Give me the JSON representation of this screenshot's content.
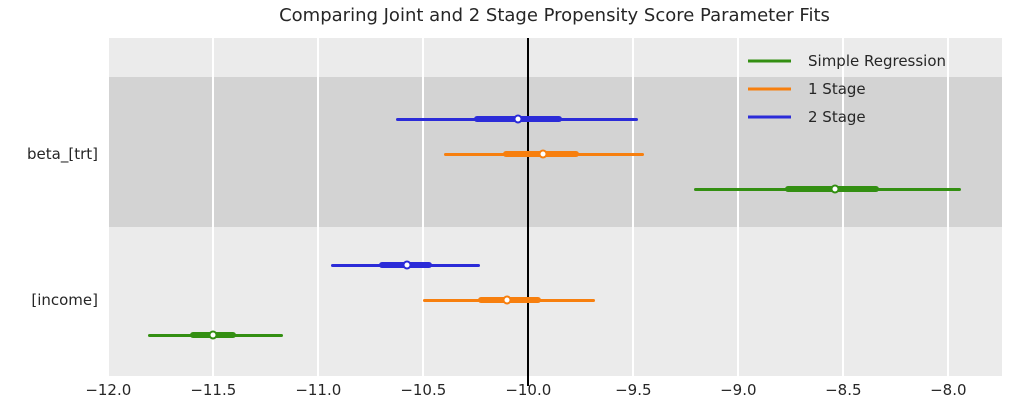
{
  "chart_data": {
    "type": "scatter",
    "subtype": "forest-plot-interval",
    "title": "Comparing Joint and 2 Stage Propensity Score Parameter Fits",
    "categories": [
      "beta_[trt]",
      "[income]"
    ],
    "xticks": [
      -12.0,
      -11.5,
      -11.0,
      -10.5,
      -10.0,
      -9.5,
      -9.0,
      -8.5,
      -8.0
    ],
    "xtick_labels": [
      "−12.0",
      "−11.5",
      "−11.0",
      "−10.5",
      "−10.0",
      "−9.5",
      "−9.0",
      "−8.5",
      "−8.0"
    ],
    "xlim": [
      -12.01,
      -7.75
    ],
    "reference_line_x": -10.0,
    "grid": true,
    "legend_position": "upper right",
    "legend_entries": [
      "Simple Regression",
      "1 Stage",
      "2 Stage"
    ],
    "series": [
      {
        "name": "Simple Regression",
        "color": "#338f12",
        "points": [
          {
            "category": "beta_[trt]",
            "estimate": -8.54,
            "ci_inner": [
              -8.78,
              -8.33
            ],
            "ci_outer": [
              -9.21,
              -7.94
            ]
          },
          {
            "category": "[income]",
            "estimate": -11.5,
            "ci_inner": [
              -11.61,
              -11.39
            ],
            "ci_outer": [
              -11.81,
              -11.17
            ]
          }
        ]
      },
      {
        "name": "1 Stage",
        "color": "#f77f0e",
        "points": [
          {
            "category": "beta_[trt]",
            "estimate": -9.93,
            "ci_inner": [
              -10.12,
              -9.76
            ],
            "ci_outer": [
              -10.4,
              -9.45
            ]
          },
          {
            "category": "[income]",
            "estimate": -10.1,
            "ci_inner": [
              -10.24,
              -9.94
            ],
            "ci_outer": [
              -10.5,
              -9.68
            ]
          }
        ]
      },
      {
        "name": "2 Stage",
        "color": "#2b2bd8",
        "points": [
          {
            "category": "beta_[trt]",
            "estimate": -10.05,
            "ci_inner": [
              -10.26,
              -9.84
            ],
            "ci_outer": [
              -10.63,
              -9.48
            ]
          },
          {
            "category": "[income]",
            "estimate": -10.58,
            "ci_inner": [
              -10.71,
              -10.46
            ],
            "ci_outer": [
              -10.94,
              -10.23
            ]
          }
        ]
      }
    ],
    "colors": {
      "plot_background": "#ebebeb",
      "category_band": "#d3d3d3",
      "gridline": "#ffffff",
      "reference_line": "#000000",
      "text": "#262626",
      "figure_background": "#ffffff"
    }
  }
}
